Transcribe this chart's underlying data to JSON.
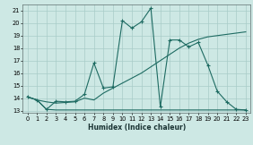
{
  "xlabel": "Humidex (Indice chaleur)",
  "xlim": [
    -0.5,
    23.5
  ],
  "ylim": [
    12.8,
    21.5
  ],
  "xticks": [
    0,
    1,
    2,
    3,
    4,
    5,
    6,
    7,
    8,
    9,
    10,
    11,
    12,
    13,
    14,
    15,
    16,
    17,
    18,
    19,
    20,
    21,
    22,
    23
  ],
  "yticks": [
    13,
    14,
    15,
    16,
    17,
    18,
    19,
    20,
    21
  ],
  "bg_color": "#cde8e4",
  "grid_color": "#a8ccc8",
  "line_color": "#1e6b62",
  "series1_x": [
    0,
    1,
    2,
    3,
    4,
    5,
    6,
    7,
    8,
    9,
    10,
    11,
    12,
    13,
    14,
    15,
    16,
    17,
    18,
    19,
    20,
    21,
    22,
    23
  ],
  "series1_y": [
    14.1,
    13.85,
    13.7,
    13.6,
    13.65,
    13.7,
    14.0,
    13.85,
    14.4,
    14.8,
    15.2,
    15.6,
    16.0,
    16.5,
    17.0,
    17.5,
    18.0,
    18.4,
    18.7,
    18.9,
    19.0,
    19.1,
    19.2,
    19.3
  ],
  "series2_x": [
    0,
    1,
    2,
    3,
    4,
    5,
    6,
    7,
    8,
    9,
    10,
    11,
    12,
    13,
    14,
    15,
    16,
    17,
    18,
    19,
    20,
    21,
    22,
    23
  ],
  "series2_y": [
    14.1,
    13.85,
    13.1,
    13.75,
    13.7,
    13.75,
    14.3,
    16.8,
    14.8,
    14.9,
    20.2,
    19.6,
    20.1,
    21.2,
    13.3,
    18.65,
    18.65,
    18.1,
    18.45,
    16.65,
    14.55,
    13.7,
    13.1,
    13.05
  ],
  "series3_x": [
    0,
    1,
    2,
    3,
    4,
    5,
    6,
    7,
    8,
    9,
    10,
    11,
    12,
    13,
    14,
    15,
    16,
    17,
    18,
    19,
    20,
    21,
    22,
    23
  ],
  "series3_y": [
    14.1,
    13.85,
    13.1,
    13.05,
    13.05,
    13.05,
    13.05,
    13.05,
    13.05,
    13.05,
    13.05,
    13.05,
    13.05,
    13.05,
    13.05,
    13.05,
    13.05,
    13.05,
    13.05,
    13.05,
    13.05,
    13.05,
    13.05,
    13.05
  ]
}
